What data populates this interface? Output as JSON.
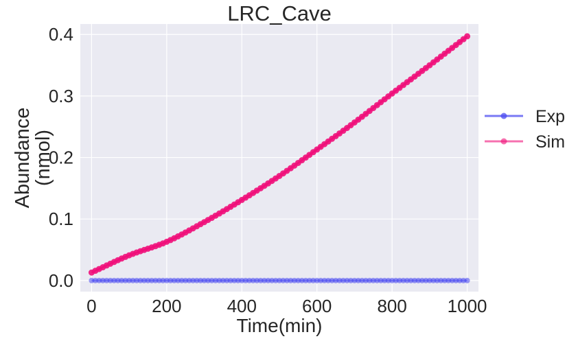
{
  "chart_data": {
    "type": "line",
    "title": "LRC_Cave",
    "xlabel": "Time(min)",
    "ylabel": [
      "Abundance",
      "(nmol)"
    ],
    "xlim": [
      -30,
      1030
    ],
    "ylim": [
      -0.018,
      0.417
    ],
    "xticks": [
      0,
      200,
      400,
      600,
      800,
      1000
    ],
    "yticks": [
      0.0,
      0.1,
      0.2,
      0.3,
      0.4
    ],
    "xtick_labels": [
      "0",
      "200",
      "400",
      "600",
      "800",
      "1000"
    ],
    "ytick_labels": [
      "0.0",
      "0.1",
      "0.2",
      "0.3",
      "0.4"
    ],
    "grid": true,
    "legend": "right-outside",
    "background": "#eaeaf2",
    "series": [
      {
        "name": "Exp",
        "color": "#4b4bf0",
        "marker": "circle",
        "x": [
          0,
          10,
          20,
          30,
          40,
          50,
          60,
          70,
          80,
          90,
          100,
          110,
          120,
          130,
          140,
          150,
          160,
          170,
          180,
          190,
          200,
          210,
          220,
          230,
          240,
          250,
          260,
          270,
          280,
          290,
          300,
          310,
          320,
          330,
          340,
          350,
          360,
          370,
          380,
          390,
          400,
          410,
          420,
          430,
          440,
          450,
          460,
          470,
          480,
          490,
          500,
          510,
          520,
          530,
          540,
          550,
          560,
          570,
          580,
          590,
          600,
          610,
          620,
          630,
          640,
          650,
          660,
          670,
          680,
          690,
          700,
          710,
          720,
          730,
          740,
          750,
          760,
          770,
          780,
          790,
          800,
          810,
          820,
          830,
          840,
          850,
          860,
          870,
          880,
          890,
          900,
          910,
          920,
          930,
          940,
          950,
          960,
          970,
          980,
          990,
          1000
        ],
        "y": [
          0,
          0,
          0,
          0,
          0,
          0,
          0,
          0,
          0,
          0,
          0,
          0,
          0,
          0,
          0,
          0,
          0,
          0,
          0,
          0,
          0,
          0,
          0,
          0,
          0,
          0,
          0,
          0,
          0,
          0,
          0,
          0,
          0,
          0,
          0,
          0,
          0,
          0,
          0,
          0,
          0,
          0,
          0,
          0,
          0,
          0,
          0,
          0,
          0,
          0,
          0,
          0,
          0,
          0,
          0,
          0,
          0,
          0,
          0,
          0,
          0,
          0,
          0,
          0,
          0,
          0,
          0,
          0,
          0,
          0,
          0,
          0,
          0,
          0,
          0,
          0,
          0,
          0,
          0,
          0,
          0,
          0,
          0,
          0,
          0,
          0,
          0,
          0,
          0,
          0,
          0,
          0,
          0,
          0,
          0,
          0,
          0,
          0,
          0,
          0,
          0
        ]
      },
      {
        "name": "Sim",
        "color": "#f0107a",
        "marker": "circle",
        "x": [
          0,
          100,
          200,
          300,
          400,
          500,
          600,
          700,
          800,
          900,
          1000
        ],
        "y": [
          0.013,
          0.041,
          0.063,
          0.095,
          0.131,
          0.17,
          0.213,
          0.257,
          0.304,
          0.35,
          0.397
        ]
      }
    ]
  }
}
